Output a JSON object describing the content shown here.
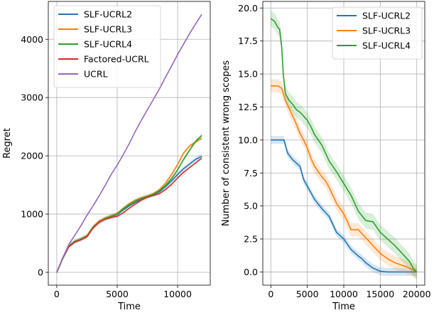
{
  "chart_data": [
    {
      "type": "line",
      "xlabel": "Time",
      "ylabel": "Regret",
      "xlim": [
        -700,
        12700
      ],
      "ylim": [
        -220,
        4650
      ],
      "xticks": [
        0,
        5000,
        10000
      ],
      "yticks": [
        0,
        1000,
        2000,
        3000,
        4000
      ],
      "grid": true,
      "legend": "top-left",
      "series": [
        {
          "name": "SLF-UCRL2",
          "color": "#1f77b4",
          "band": 40,
          "x": [
            0,
            500,
            1000,
            1500,
            2000,
            2500,
            3000,
            3500,
            4000,
            4500,
            5000,
            5500,
            6000,
            6500,
            7000,
            7500,
            8000,
            8500,
            9000,
            9500,
            10000,
            10500,
            11000,
            11500,
            12000
          ],
          "y": [
            0,
            240,
            450,
            530,
            570,
            620,
            770,
            860,
            920,
            960,
            990,
            1070,
            1140,
            1200,
            1250,
            1290,
            1330,
            1380,
            1470,
            1570,
            1680,
            1780,
            1860,
            1940,
            1990
          ]
        },
        {
          "name": "SLF-UCRL3",
          "color": "#ff7f0e",
          "band": 30,
          "x": [
            0,
            500,
            1000,
            1500,
            2000,
            2500,
            3000,
            3500,
            4000,
            4500,
            5000,
            5500,
            6000,
            6500,
            7000,
            7500,
            8000,
            8500,
            9000,
            9500,
            10000,
            10500,
            11000,
            11500,
            12000
          ],
          "y": [
            0,
            240,
            450,
            530,
            570,
            630,
            780,
            880,
            930,
            970,
            1010,
            1100,
            1180,
            1240,
            1280,
            1310,
            1350,
            1420,
            1530,
            1680,
            1850,
            2050,
            2170,
            2240,
            2300
          ]
        },
        {
          "name": "SLF-UCRL4",
          "color": "#2ca02c",
          "band": 30,
          "x": [
            0,
            500,
            1000,
            1500,
            2000,
            2500,
            3000,
            3500,
            4000,
            4500,
            5000,
            5500,
            6000,
            6500,
            7000,
            7500,
            8000,
            8500,
            9000,
            9500,
            10000,
            10500,
            11000,
            11500,
            12000
          ],
          "y": [
            0,
            240,
            450,
            530,
            570,
            620,
            770,
            860,
            920,
            960,
            1000,
            1090,
            1160,
            1220,
            1270,
            1300,
            1340,
            1400,
            1490,
            1610,
            1760,
            1940,
            2100,
            2250,
            2350
          ]
        },
        {
          "name": "Factored-UCRL",
          "color": "#d62728",
          "band": 0,
          "x": [
            0,
            500,
            1000,
            1500,
            2000,
            2500,
            3000,
            3500,
            4000,
            4500,
            5000,
            5500,
            6000,
            6500,
            7000,
            7500,
            8000,
            8500,
            9000,
            9500,
            10000,
            10500,
            11000,
            11500,
            12000
          ],
          "y": [
            0,
            250,
            440,
            520,
            560,
            610,
            760,
            860,
            910,
            940,
            960,
            1020,
            1100,
            1170,
            1240,
            1290,
            1320,
            1350,
            1420,
            1510,
            1620,
            1720,
            1800,
            1880,
            1960
          ]
        },
        {
          "name": "UCRL",
          "color": "#9467bd",
          "band": 0,
          "x": [
            0,
            500,
            1000,
            1500,
            2000,
            2500,
            3000,
            3500,
            4000,
            4500,
            5000,
            5500,
            6000,
            6500,
            7000,
            7500,
            8000,
            8500,
            9000,
            9500,
            10000,
            10500,
            11000,
            11500,
            12000
          ],
          "y": [
            0,
            250,
            480,
            640,
            800,
            980,
            1140,
            1310,
            1490,
            1680,
            1840,
            2020,
            2210,
            2420,
            2610,
            2790,
            2970,
            3150,
            3350,
            3540,
            3740,
            3920,
            4100,
            4270,
            4430
          ]
        }
      ]
    },
    {
      "type": "line",
      "xlabel": "Time",
      "ylabel": "Number of consistent wrong scopes",
      "xlim": [
        -1100,
        21100
      ],
      "ylim": [
        -1.0,
        20.5
      ],
      "xticks": [
        0,
        5000,
        10000,
        15000,
        20000
      ],
      "yticks": [
        0.0,
        2.5,
        5.0,
        7.5,
        10.0,
        12.5,
        15.0,
        17.5,
        20.0
      ],
      "ytick_labels": [
        "0.0",
        "2.5",
        "5.0",
        "7.5",
        "10.0",
        "12.5",
        "15.0",
        "17.5",
        "20.0"
      ],
      "grid": true,
      "legend": "top-right",
      "series": [
        {
          "name": "SLF-UCRL2",
          "color": "#1f77b4",
          "band": 0.3,
          "x": [
            0,
            1800,
            2300,
            3000,
            4000,
            4500,
            5000,
            5500,
            6000,
            7000,
            8000,
            8500,
            9000,
            10000,
            10500,
            11000,
            12000,
            12500,
            13000,
            14000,
            15000,
            16000,
            17000,
            18000,
            19000,
            20000
          ],
          "y": [
            10,
            10,
            9.0,
            8.5,
            8.0,
            7.0,
            6.5,
            6.0,
            5.5,
            4.8,
            4.2,
            3.6,
            3.0,
            2.5,
            2.1,
            1.7,
            1.2,
            1.0,
            0.7,
            0.3,
            0.05,
            0,
            0,
            0,
            0,
            0
          ]
        },
        {
          "name": "SLF-UCRL3",
          "color": "#ff7f0e",
          "band": 0.5,
          "x": [
            0,
            1000,
            1500,
            2000,
            2500,
            3000,
            3500,
            4000,
            4500,
            5000,
            5500,
            6000,
            6500,
            7000,
            7500,
            8000,
            8500,
            9000,
            10000,
            11000,
            12000,
            13000,
            14000,
            15000,
            16000,
            17000,
            18000,
            19000,
            20000
          ],
          "y": [
            14.1,
            14.1,
            13.9,
            13.0,
            12.4,
            11.8,
            11.2,
            10.5,
            10.0,
            9.4,
            8.6,
            8.0,
            7.6,
            7.2,
            6.9,
            6.4,
            5.8,
            5.2,
            4.4,
            3.2,
            3.2,
            2.6,
            2.0,
            1.4,
            1.0,
            0.7,
            0.5,
            0.3,
            0.0
          ]
        },
        {
          "name": "SLF-UCRL4",
          "color": "#2ca02c",
          "band": 0.6,
          "x": [
            0,
            500,
            1000,
            1200,
            1500,
            1700,
            2000,
            2500,
            3000,
            3500,
            4000,
            4500,
            5000,
            5500,
            6000,
            6500,
            7000,
            7500,
            8000,
            9000,
            10000,
            11000,
            12000,
            13000,
            14000,
            15000,
            16000,
            17000,
            18000,
            19000,
            19500,
            20000
          ],
          "y": [
            19.2,
            19.0,
            18.5,
            18.4,
            17.0,
            15.0,
            13.5,
            13.0,
            12.7,
            12.3,
            12.1,
            11.8,
            11.5,
            11.0,
            10.4,
            10.0,
            9.6,
            9.0,
            8.4,
            7.6,
            6.7,
            5.8,
            4.6,
            3.9,
            3.8,
            3.0,
            2.5,
            2.0,
            1.4,
            0.8,
            0.3,
            0.0
          ]
        }
      ]
    }
  ]
}
